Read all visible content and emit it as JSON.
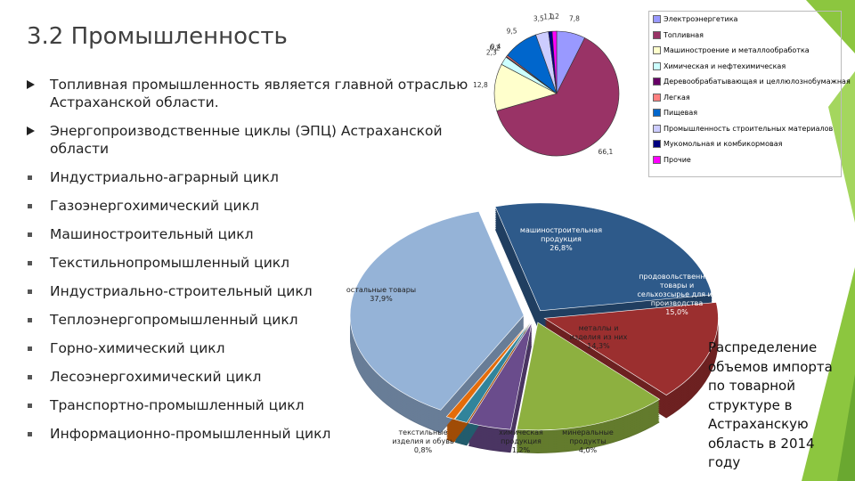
{
  "title": "3.2 Промышленность",
  "bullets": [
    "Топливная промышленность является главной отраслью Астраханской области.",
    "Энергопроизводственные циклы (ЭПЦ) Астраханской области",
    "Индустриально-аграрный цикл",
    "Газоэнергохимический цикл",
    "Машиностроительный цикл",
    "Текстильнопромышленный цикл",
    "Индустриально-строительный цикл",
    "Теплоэнергопромышленный цикл",
    "Горно-химический цикл",
    "Лесоэнергохимический цикл",
    "Транспортно-промышленный цикл",
    "Информационно-промышленный цикл"
  ],
  "caption": "Распределение объемов импорта по товарной структуре в Астраханскую область в 2014 году",
  "chart_data": [
    {
      "type": "pie",
      "categories": [
        "Электроэнергетика",
        "Топливная",
        "Машиностроение и металлообработка",
        "Химическая и нефтехимическая",
        "Деревообрабатывающая и целлюлознобумажная",
        "Легкая",
        "Пищевая",
        "Промышленность строительных материалов",
        "Мукомольная и комбикормовая",
        "Прочие"
      ],
      "values": [
        7.8,
        66.1,
        12.8,
        2.3,
        0.2,
        0.4,
        9.5,
        3.5,
        1.0,
        1.2
      ],
      "value_labels": [
        "7,8",
        "66,1",
        "12,8",
        "2,3",
        "0,2",
        "0,4",
        "9,5",
        "3,5",
        "1,0",
        "1,2"
      ],
      "colors": [
        "#9999ff",
        "#993366",
        "#ffffcc",
        "#ccffff",
        "#660066",
        "#ff8080",
        "#0066cc",
        "#ccccff",
        "#000080",
        "#ff00ff"
      ]
    },
    {
      "type": "pie",
      "categories": [
        "машиностроительная продукция",
        "продовольственные товары и сельхозсырье для их производства",
        "металлы и изделия из них",
        "минеральные продукты",
        "химическая продукция",
        "текстильные изделия и обувь",
        "остальные товары"
      ],
      "values": [
        26.8,
        15.0,
        14.3,
        4.0,
        1.2,
        0.8,
        37.9
      ],
      "value_labels": [
        "26,8%",
        "15,0%",
        "14,3%",
        "4,0%",
        "1,2%",
        "0,8%",
        "37,9%"
      ],
      "colors": [
        "#2e5a8a",
        "#9b2f2f",
        "#8db040",
        "#6a4c8c",
        "#31849b",
        "#e46c0a",
        "#95b3d7"
      ]
    }
  ]
}
